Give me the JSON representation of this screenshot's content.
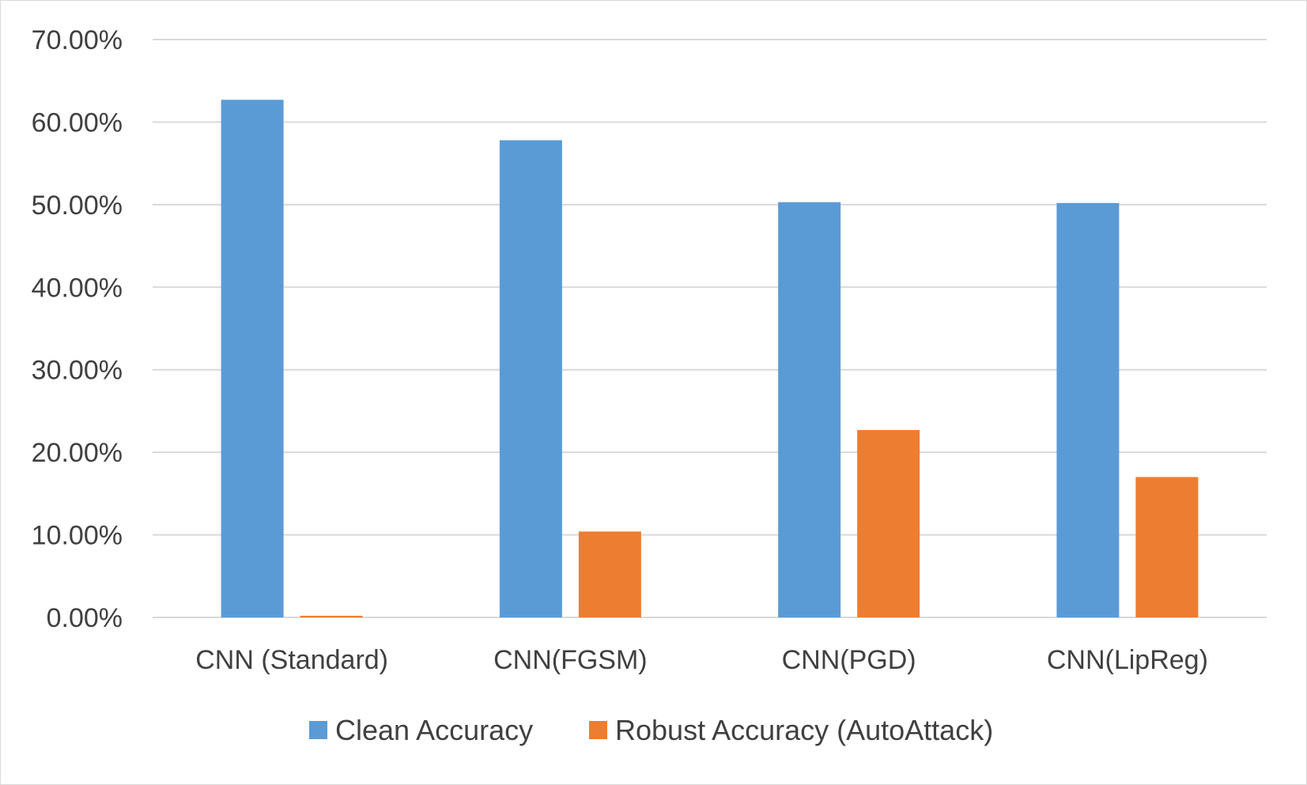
{
  "chart_data": {
    "type": "bar",
    "categories": [
      "CNN (Standard)",
      "CNN(FGSM)",
      "CNN(PGD)",
      "CNN(LipReg)"
    ],
    "series": [
      {
        "name": "Clean Accuracy",
        "color": "#5b9bd5",
        "values": [
          62.7,
          57.8,
          50.3,
          50.2
        ]
      },
      {
        "name": "Robust Accuracy (AutoAttack)",
        "color": "#ed7d31",
        "values": [
          0.2,
          10.4,
          22.7,
          17.0
        ]
      }
    ],
    "yticks": [
      "0.00%",
      "10.00%",
      "20.00%",
      "30.00%",
      "40.00%",
      "50.00%",
      "60.00%",
      "70.00%"
    ],
    "ylim": [
      0,
      70
    ],
    "grid": true,
    "legend_position": "bottom",
    "gridline_color": "#d9d9d9"
  }
}
